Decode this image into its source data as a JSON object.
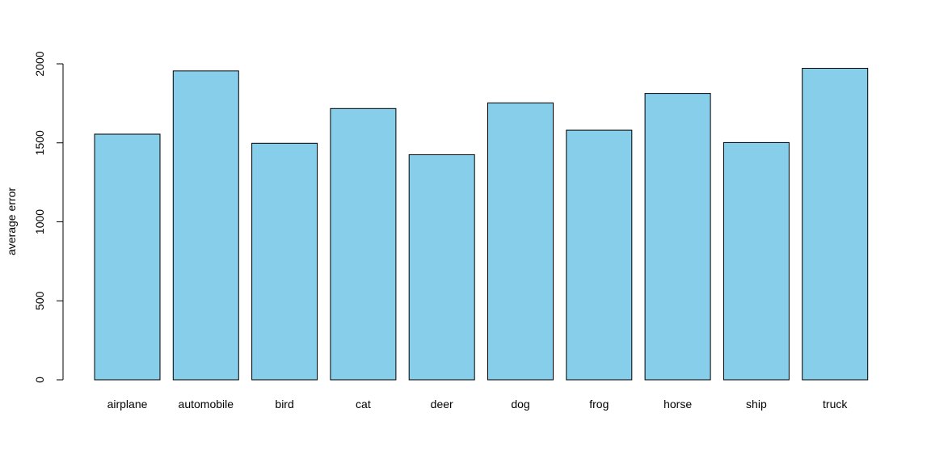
{
  "chart_data": {
    "type": "bar",
    "categories": [
      "airplane",
      "automobile",
      "bird",
      "cat",
      "deer",
      "dog",
      "frog",
      "horse",
      "ship",
      "truck"
    ],
    "values": [
      1555,
      1955,
      1497,
      1717,
      1425,
      1753,
      1580,
      1813,
      1502,
      1972
    ],
    "title": "",
    "xlabel": "",
    "ylabel": "average error",
    "ylim": [
      0,
      2000
    ],
    "yticks": [
      0,
      500,
      1000,
      1500,
      2000
    ],
    "grid": false,
    "bar_color": "#87CEEB",
    "border_color": "#000000"
  }
}
